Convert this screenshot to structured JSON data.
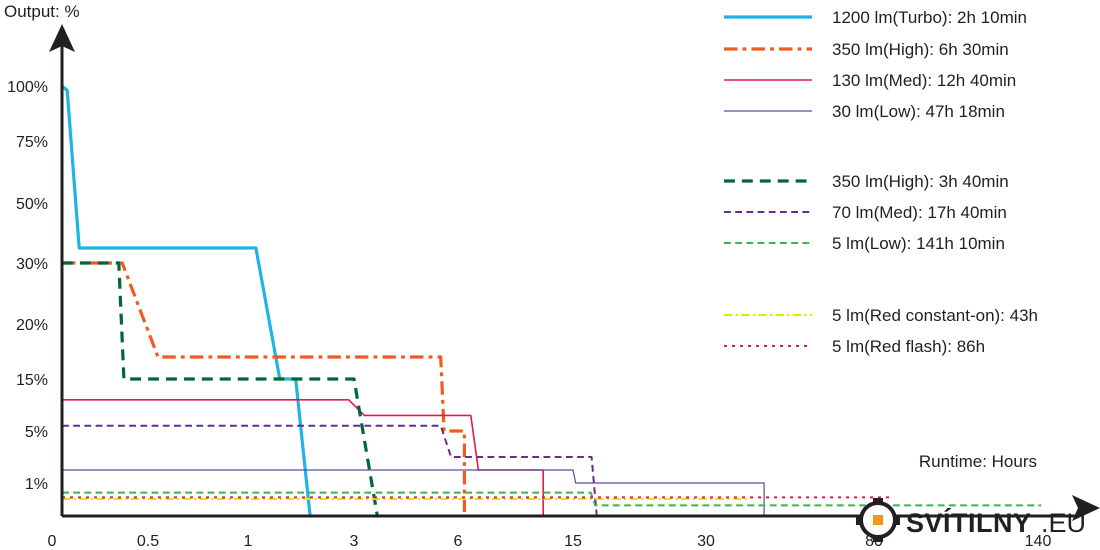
{
  "chart_data": {
    "type": "line",
    "ylabel": "Output: %",
    "xlabel": "Runtime: Hours",
    "x_ticks": [
      "0",
      "0.5",
      "1",
      "3",
      "6",
      "15",
      "30",
      "80",
      "140"
    ],
    "y_ticks": [
      "100%",
      "75%",
      "50%",
      "30%",
      "20%",
      "15%",
      "5%",
      "1%"
    ],
    "x_scale": "non-linear (categorical hour ticks)",
    "y_scale": "non-linear (categorical percent ticks)",
    "grid": false,
    "legend_position": "top-right",
    "series": [
      {
        "name": "1200 lm(Turbo): 2h 10min",
        "color": "#1eb4e6",
        "dash": "solid",
        "width": 3.2,
        "points": [
          [
            0,
            100
          ],
          [
            0.03,
            98
          ],
          [
            0.1,
            35
          ],
          [
            1.15,
            35
          ],
          [
            1.6,
            15
          ],
          [
            1.9,
            15
          ],
          [
            2.17,
            0
          ]
        ]
      },
      {
        "name": "350 lm(High): 6h 30min",
        "color": "#f15a22",
        "dash": "dashdot",
        "width": 3.2,
        "points": [
          [
            0,
            30
          ],
          [
            0.35,
            30
          ],
          [
            0.55,
            17
          ],
          [
            5.5,
            17
          ],
          [
            5.6,
            5
          ],
          [
            6.5,
            5
          ],
          [
            6.5,
            0
          ]
        ]
      },
      {
        "name": "130 lm(Med): 12h 40min",
        "color": "#e6194b",
        "dash": "solid",
        "width": 1.6,
        "points": [
          [
            0,
            11
          ],
          [
            2.9,
            11
          ],
          [
            3.3,
            8
          ],
          [
            7,
            8
          ],
          [
            7.6,
            2
          ],
          [
            12.67,
            2
          ],
          [
            12.67,
            0
          ]
        ]
      },
      {
        "name": "30 lm(Low): 47h 18min",
        "color": "#5b4c9e",
        "dash": "solid",
        "width": 1.2,
        "points": [
          [
            0,
            2
          ],
          [
            15,
            2
          ],
          [
            15.3,
            1
          ],
          [
            47.3,
            1
          ],
          [
            47.3,
            0
          ]
        ]
      },
      {
        "name": "350 lm(High): 3h 40min",
        "color": "#006837",
        "dash": "dash",
        "width": 3.2,
        "points": [
          [
            0,
            30
          ],
          [
            0.33,
            30
          ],
          [
            0.36,
            15
          ],
          [
            3,
            15
          ],
          [
            3.67,
            0
          ]
        ]
      },
      {
        "name": "70 lm(Med): 17h 40min",
        "color": "#662d91",
        "dash": "dash",
        "width": 2,
        "points": [
          [
            0,
            6
          ],
          [
            5.5,
            6
          ],
          [
            5.8,
            3
          ],
          [
            17.1,
            3
          ],
          [
            17.67,
            0
          ]
        ]
      },
      {
        "name": "5 lm(Low): 141h 10min",
        "color": "#39b54a",
        "dash": "dash",
        "width": 2,
        "points": [
          [
            0,
            0.7
          ],
          [
            17,
            0.7
          ],
          [
            17.5,
            0.3
          ],
          [
            141.17,
            0.3
          ]
        ]
      },
      {
        "name": "5 lm(Red constant-on): 43h",
        "color": "#e6e600",
        "dash": "dashdot",
        "width": 2,
        "points": [
          [
            0,
            0.5
          ],
          [
            43,
            0.5
          ]
        ]
      },
      {
        "name": "5 lm(Red flash): 86h",
        "color": "#e6194b",
        "dash": "dot",
        "width": 2,
        "points": [
          [
            0,
            0.55
          ],
          [
            86,
            0.55
          ]
        ]
      }
    ],
    "legend_groups": [
      [
        0,
        1,
        2,
        3
      ],
      [
        4,
        5,
        6
      ],
      [
        7,
        8
      ]
    ]
  },
  "brand": {
    "name": "SVÍTILNY",
    "tld": ".EU"
  }
}
